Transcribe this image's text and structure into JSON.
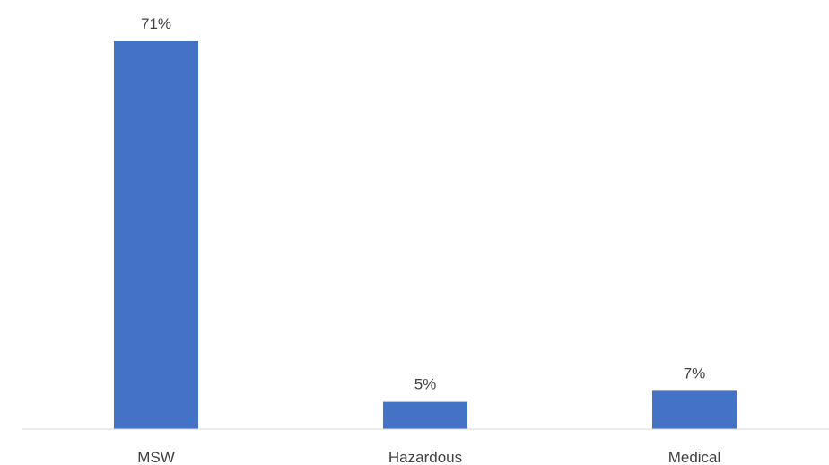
{
  "chart_data": {
    "type": "bar",
    "categories": [
      "MSW",
      "Hazardous",
      "Medical"
    ],
    "values": [
      71,
      5,
      7
    ],
    "data_labels": [
      "71%",
      "5%",
      "7%"
    ],
    "title": "",
    "xlabel": "",
    "ylabel": "",
    "ylim": [
      0,
      71
    ],
    "grid": false,
    "legend": "none",
    "colors": {
      "bar": "#4472C4",
      "axis": "#d9d9d9",
      "text": "#404040"
    }
  }
}
